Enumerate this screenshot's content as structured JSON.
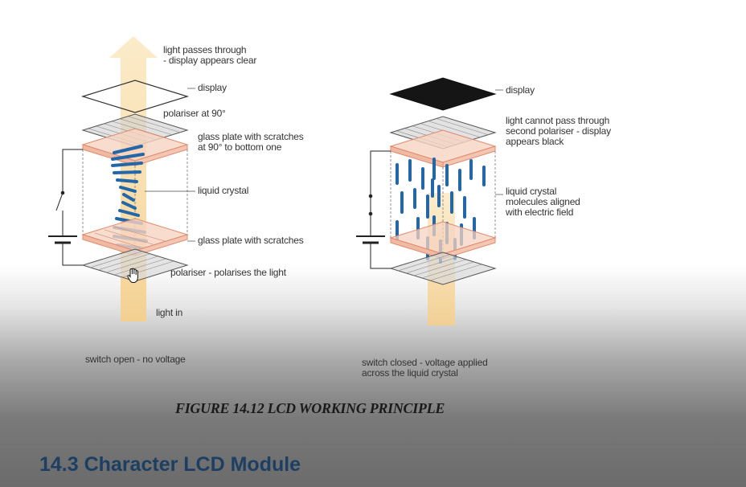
{
  "left_diagram": {
    "labels": {
      "light_passes": "light passes through\n- display appears clear",
      "display": "display",
      "polariser_90": "polariser at 90°",
      "glass_plate_top": "glass plate with scratches\nat 90° to bottom one",
      "liquid_crystal": "liquid crystal",
      "glass_plate_bottom": "glass plate with scratches",
      "polariser_bottom": "polariser - polarises the light",
      "light_in": "light in",
      "switch_state": "switch open - no voltage"
    }
  },
  "right_diagram": {
    "labels": {
      "display": "display",
      "light_cannot_pass": "light cannot pass through\nsecond polariser - display\nappears black",
      "liquid_crystal_aligned": "liquid crystal\nmolecules aligned\nwith electric field",
      "switch_state": "switch closed - voltage applied\nacross the liquid crystal"
    }
  },
  "figure_caption": "FIGURE 14.12 LCD WORKING PRINCIPLE",
  "section_title": "14.3  Character LCD Module",
  "colors": {
    "beam": "#f8dfa8",
    "glass_fill": "#f6d3c0",
    "glass_edge": "#e08a70",
    "crystal": "#2467a8",
    "display_black": "#151515",
    "section_title": "#1d3f63"
  }
}
